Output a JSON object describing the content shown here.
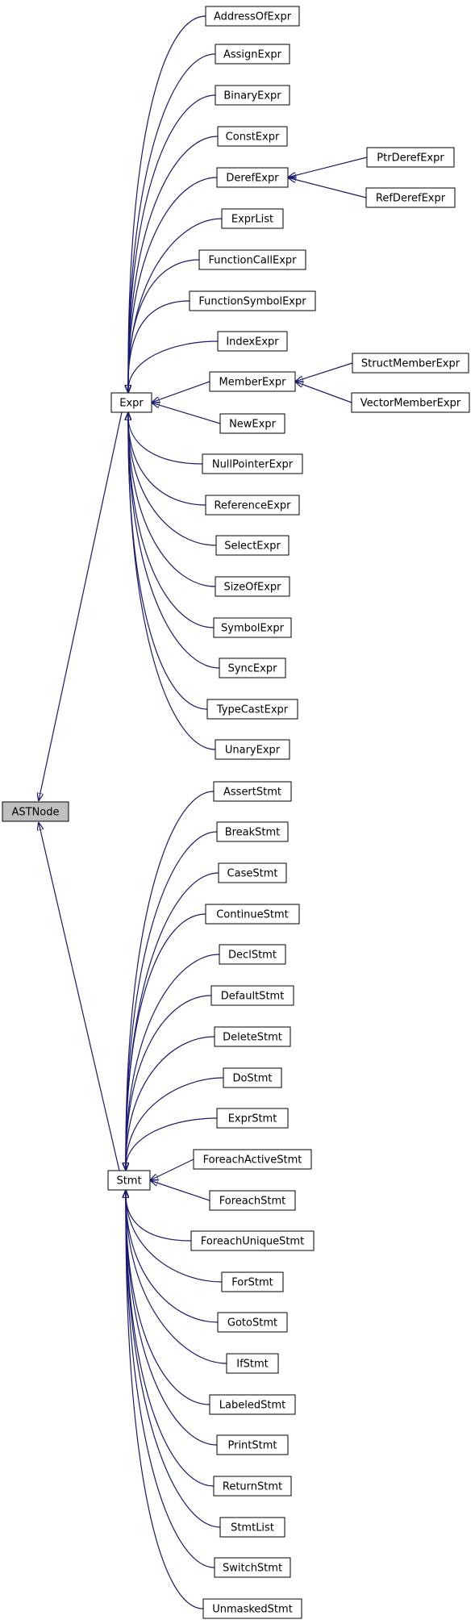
{
  "diagram": {
    "type": "inheritance-graph",
    "colors": {
      "edge": "#191970",
      "root_fill": "#bfbfbf",
      "node_fill": "#ffffff",
      "node_border": "#000000"
    },
    "root": "ASTNode",
    "nodes": [
      "ASTNode",
      "Expr",
      "Stmt",
      "AddressOfExpr",
      "AssignExpr",
      "BinaryExpr",
      "ConstExpr",
      "DerefExpr",
      "ExprList",
      "FunctionCallExpr",
      "FunctionSymbolExpr",
      "IndexExpr",
      "MemberExpr",
      "NewExpr",
      "NullPointerExpr",
      "ReferenceExpr",
      "SelectExpr",
      "SizeOfExpr",
      "SymbolExpr",
      "SyncExpr",
      "TypeCastExpr",
      "UnaryExpr",
      "PtrDerefExpr",
      "RefDerefExpr",
      "StructMemberExpr",
      "VectorMemberExpr",
      "AssertStmt",
      "BreakStmt",
      "CaseStmt",
      "ContinueStmt",
      "DeclStmt",
      "DefaultStmt",
      "DeleteStmt",
      "DoStmt",
      "ExprStmt",
      "ForeachActiveStmt",
      "ForeachStmt",
      "ForeachUniqueStmt",
      "ForStmt",
      "GotoStmt",
      "IfStmt",
      "LabeledStmt",
      "PrintStmt",
      "ReturnStmt",
      "StmtList",
      "SwitchStmt",
      "UnmaskedStmt"
    ],
    "edges": [
      [
        "Expr",
        "ASTNode"
      ],
      [
        "Stmt",
        "ASTNode"
      ],
      [
        "AddressOfExpr",
        "Expr"
      ],
      [
        "AssignExpr",
        "Expr"
      ],
      [
        "BinaryExpr",
        "Expr"
      ],
      [
        "ConstExpr",
        "Expr"
      ],
      [
        "DerefExpr",
        "Expr"
      ],
      [
        "ExprList",
        "Expr"
      ],
      [
        "FunctionCallExpr",
        "Expr"
      ],
      [
        "FunctionSymbolExpr",
        "Expr"
      ],
      [
        "IndexExpr",
        "Expr"
      ],
      [
        "MemberExpr",
        "Expr"
      ],
      [
        "NewExpr",
        "Expr"
      ],
      [
        "NullPointerExpr",
        "Expr"
      ],
      [
        "ReferenceExpr",
        "Expr"
      ],
      [
        "SelectExpr",
        "Expr"
      ],
      [
        "SizeOfExpr",
        "Expr"
      ],
      [
        "SymbolExpr",
        "Expr"
      ],
      [
        "SyncExpr",
        "Expr"
      ],
      [
        "TypeCastExpr",
        "Expr"
      ],
      [
        "UnaryExpr",
        "Expr"
      ],
      [
        "PtrDerefExpr",
        "DerefExpr"
      ],
      [
        "RefDerefExpr",
        "DerefExpr"
      ],
      [
        "StructMemberExpr",
        "MemberExpr"
      ],
      [
        "VectorMemberExpr",
        "MemberExpr"
      ],
      [
        "AssertStmt",
        "Stmt"
      ],
      [
        "BreakStmt",
        "Stmt"
      ],
      [
        "CaseStmt",
        "Stmt"
      ],
      [
        "ContinueStmt",
        "Stmt"
      ],
      [
        "DeclStmt",
        "Stmt"
      ],
      [
        "DefaultStmt",
        "Stmt"
      ],
      [
        "DeleteStmt",
        "Stmt"
      ],
      [
        "DoStmt",
        "Stmt"
      ],
      [
        "ExprStmt",
        "Stmt"
      ],
      [
        "ForeachActiveStmt",
        "Stmt"
      ],
      [
        "ForeachStmt",
        "Stmt"
      ],
      [
        "ForeachUniqueStmt",
        "Stmt"
      ],
      [
        "ForStmt",
        "Stmt"
      ],
      [
        "GotoStmt",
        "Stmt"
      ],
      [
        "IfStmt",
        "Stmt"
      ],
      [
        "LabeledStmt",
        "Stmt"
      ],
      [
        "PrintStmt",
        "Stmt"
      ],
      [
        "ReturnStmt",
        "Stmt"
      ],
      [
        "StmtList",
        "Stmt"
      ],
      [
        "SwitchStmt",
        "Stmt"
      ],
      [
        "UnmaskedStmt",
        "Stmt"
      ]
    ]
  }
}
